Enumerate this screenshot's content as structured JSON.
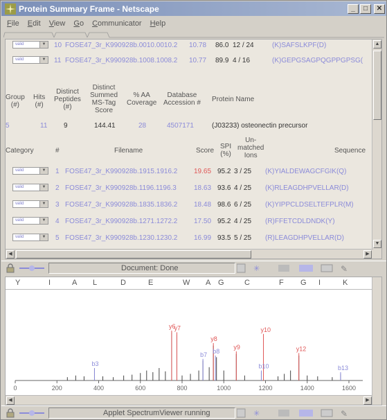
{
  "window": {
    "title": "Protein Summary Frame - Netscape",
    "buttons": {
      "minimize": "_",
      "maximize": "□",
      "close": "✕"
    }
  },
  "menu": [
    "File",
    "Edit",
    "View",
    "Go",
    "Communicator",
    "Help"
  ],
  "top_rows": [
    {
      "category": "valid",
      "num": "10",
      "filename": "FOSE47_3r_K990928b.0010.0010.2",
      "score": "10.78",
      "spi": "86.0",
      "ions": "12 / 24",
      "sequence": "(K)SAFSLKPF(D)"
    },
    {
      "category": "valid",
      "num": "11",
      "filename": "FOSE47_3r_K990928b.1008.1008.2",
      "score": "10.77",
      "spi": "89.9",
      "ions": "4 / 16",
      "sequence": "(K)GEPGSAGPQGPPGPSG("
    }
  ],
  "group_header": {
    "group": "Group\n(#)",
    "hits": "Hits\n(#)",
    "distinct_peptides": "Distinct\nPeptides\n(#)",
    "summed_score": "Distinct\nSummed\nMS-Tag\nScore",
    "coverage": "% AA\nCoverage",
    "accession": "Database\nAccession #",
    "protein_name": "Protein Name"
  },
  "group_row": {
    "group": "5",
    "hits": "11",
    "distinct_peptides": "9",
    "summed_score": "144.41",
    "coverage": "28",
    "accession": "4507171",
    "protein_name": "(J03233) osteonectin precursor"
  },
  "peptide_header": {
    "category": "Category",
    "num": "#",
    "filename": "Filename",
    "score": "Score",
    "spi": "SPI\n(%)",
    "unmatched": "Un-\nmatched\nIons",
    "sequence": "Sequence"
  },
  "peptide_rows": [
    {
      "category": "valid",
      "num": "1",
      "filename": "FOSE47_3r_K990928b.1915.1916.2",
      "score": "19.65",
      "score_red": true,
      "spi": "95.2",
      "ions": "3 / 25",
      "sequence": "(K)YIALDEWAGCFGIK(Q)"
    },
    {
      "category": "valid",
      "num": "2",
      "filename": "FOSE47_3r_K990928b.1196.1196.3",
      "score": "18.63",
      "score_red": false,
      "spi": "93.6",
      "ions": "4 / 25",
      "sequence": "(K)RLEAGDHPVELLAR(D)"
    },
    {
      "category": "valid",
      "num": "3",
      "filename": "FOSE47_3r_K990928b.1835.1836.2",
      "score": "18.48",
      "score_red": false,
      "spi": "98.6",
      "ions": "6 / 25",
      "sequence": "(K)YIPPCLDSELTEFPLR(M)"
    },
    {
      "category": "valid",
      "num": "4",
      "filename": "FOSE47_3r_K990928b.1271.1272.2",
      "score": "17.50",
      "score_red": false,
      "spi": "95.2",
      "ions": "4 / 25",
      "sequence": "(R)FFETCDLDNDK(Y)"
    },
    {
      "category": "valid",
      "num": "5",
      "filename": "FOSE47_3r_K990928b.1230.1230.2",
      "score": "16.99",
      "score_red": false,
      "spi": "93.5",
      "ions": "5 / 25",
      "sequence": "(R)LEAGDHPVELLAR(D)"
    }
  ],
  "status_top": "Document: Done",
  "status_bottom": "Applet SpectrumViewer running",
  "sequence_letters": [
    "Y",
    "I",
    "A",
    "L",
    "D",
    "E",
    "W",
    "A",
    "G",
    "C",
    "F",
    "G",
    "I",
    "K"
  ],
  "spectrum": {
    "x_ticks": [
      "0",
      "200",
      "400",
      "600",
      "800",
      "1000",
      "1200",
      "1400",
      "1600"
    ],
    "annotations": [
      {
        "label": "y6",
        "mz": 750,
        "rel": 0.6,
        "color": "#e05858"
      },
      {
        "label": "y7",
        "mz": 775,
        "rel": 0.58,
        "color": "#e05858"
      },
      {
        "label": "y8",
        "mz": 950,
        "rel": 0.45,
        "color": "#e05858"
      },
      {
        "label": "y9",
        "mz": 1060,
        "rel": 0.35,
        "color": "#e05858"
      },
      {
        "label": "y10",
        "mz": 1190,
        "rel": 0.56,
        "color": "#e05858"
      },
      {
        "label": "y12",
        "mz": 1360,
        "rel": 0.33,
        "color": "#e05858"
      },
      {
        "label": "b8",
        "mz": 960,
        "rel": 0.3,
        "color": "#8b8bd9"
      },
      {
        "label": "b7",
        "mz": 900,
        "rel": 0.26,
        "color": "#8b8bd9"
      },
      {
        "label": "b3",
        "mz": 380,
        "rel": 0.15,
        "color": "#8b8bd9"
      },
      {
        "label": "b10",
        "mz": 1180,
        "rel": 0.12,
        "color": "#8b8bd9"
      },
      {
        "label": "b13",
        "mz": 1560,
        "rel": 0.1,
        "color": "#8b8bd9"
      }
    ],
    "peaks": [
      [
        250,
        0.04
      ],
      [
        290,
        0.06
      ],
      [
        330,
        0.05
      ],
      [
        380,
        0.14
      ],
      [
        420,
        0.05
      ],
      [
        470,
        0.04
      ],
      [
        520,
        0.06
      ],
      [
        560,
        0.07
      ],
      [
        600,
        0.09
      ],
      [
        630,
        0.12
      ],
      [
        660,
        0.1
      ],
      [
        690,
        0.15
      ],
      [
        720,
        0.11
      ],
      [
        750,
        0.58
      ],
      [
        775,
        0.55
      ],
      [
        800,
        0.06
      ],
      [
        840,
        0.08
      ],
      [
        880,
        0.12
      ],
      [
        900,
        0.24
      ],
      [
        930,
        0.16
      ],
      [
        950,
        0.42
      ],
      [
        965,
        0.28
      ],
      [
        1000,
        0.12
      ],
      [
        1060,
        0.32
      ],
      [
        1100,
        0.06
      ],
      [
        1180,
        0.1
      ],
      [
        1190,
        0.53
      ],
      [
        1260,
        0.05
      ],
      [
        1290,
        0.08
      ],
      [
        1320,
        0.12
      ],
      [
        1360,
        0.3
      ],
      [
        1400,
        0.06
      ],
      [
        1450,
        0.05
      ],
      [
        1520,
        0.04
      ],
      [
        1560,
        0.08
      ]
    ]
  },
  "colors": {
    "accent": "#8b8bd9",
    "highlight": "#e05858"
  }
}
